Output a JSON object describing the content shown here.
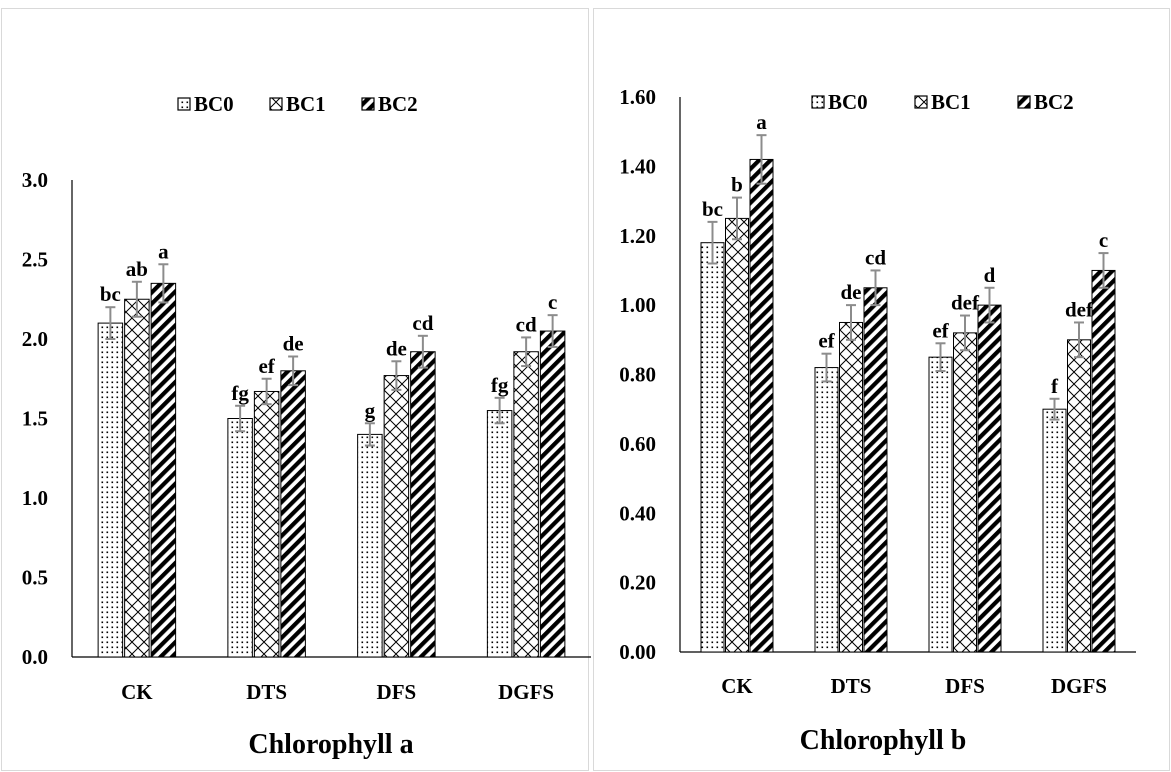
{
  "chart_data": [
    {
      "type": "bar",
      "xlabel": "Chlorophyll a",
      "ylabel": "",
      "categories": [
        "CK",
        "DTS",
        "DFS",
        "DGFS"
      ],
      "ylim": [
        0,
        3.0
      ],
      "yticks": [
        "0.0",
        "0.5",
        "1.0",
        "1.5",
        "2.0",
        "2.5",
        "3.0"
      ],
      "grid": false,
      "legend_position": "top",
      "series": [
        {
          "name": "BC0",
          "pattern": "dots",
          "values": [
            2.1,
            1.5,
            1.4,
            1.55
          ],
          "errors": [
            0.1,
            0.08,
            0.07,
            0.08
          ],
          "letters": [
            "bc",
            "fg",
            "g",
            "fg"
          ]
        },
        {
          "name": "BC1",
          "pattern": "crosshatch",
          "values": [
            2.25,
            1.67,
            1.77,
            1.92
          ],
          "errors": [
            0.11,
            0.08,
            0.09,
            0.09
          ],
          "letters": [
            "ab",
            "ef",
            "de",
            "cd"
          ]
        },
        {
          "name": "BC2",
          "pattern": "stripes",
          "values": [
            2.35,
            1.8,
            1.92,
            2.05
          ],
          "errors": [
            0.12,
            0.09,
            0.1,
            0.1
          ],
          "letters": [
            "a",
            "de",
            "cd",
            "c"
          ]
        }
      ]
    },
    {
      "type": "bar",
      "xlabel": "Chlorophyll b",
      "ylabel": "",
      "categories": [
        "CK",
        "DTS",
        "DFS",
        "DGFS"
      ],
      "ylim": [
        0,
        1.6
      ],
      "yticks": [
        "0.00",
        "0.20",
        "0.40",
        "0.60",
        "0.80",
        "1.00",
        "1.20",
        "1.40",
        "1.60"
      ],
      "grid": false,
      "legend_position": "top",
      "series": [
        {
          "name": "BC0",
          "pattern": "dots",
          "values": [
            1.18,
            0.82,
            0.85,
            0.7
          ],
          "errors": [
            0.06,
            0.04,
            0.04,
            0.03
          ],
          "letters": [
            "bc",
            "ef",
            "ef",
            "f"
          ]
        },
        {
          "name": "BC1",
          "pattern": "crosshatch",
          "values": [
            1.25,
            0.95,
            0.92,
            0.9
          ],
          "errors": [
            0.06,
            0.05,
            0.05,
            0.05
          ],
          "letters": [
            "b",
            "de",
            "def",
            "def"
          ]
        },
        {
          "name": "BC2",
          "pattern": "stripes",
          "values": [
            1.42,
            1.05,
            1.0,
            1.1
          ],
          "errors": [
            0.07,
            0.05,
            0.05,
            0.05
          ],
          "letters": [
            "a",
            "cd",
            "d",
            "c"
          ]
        }
      ]
    }
  ]
}
